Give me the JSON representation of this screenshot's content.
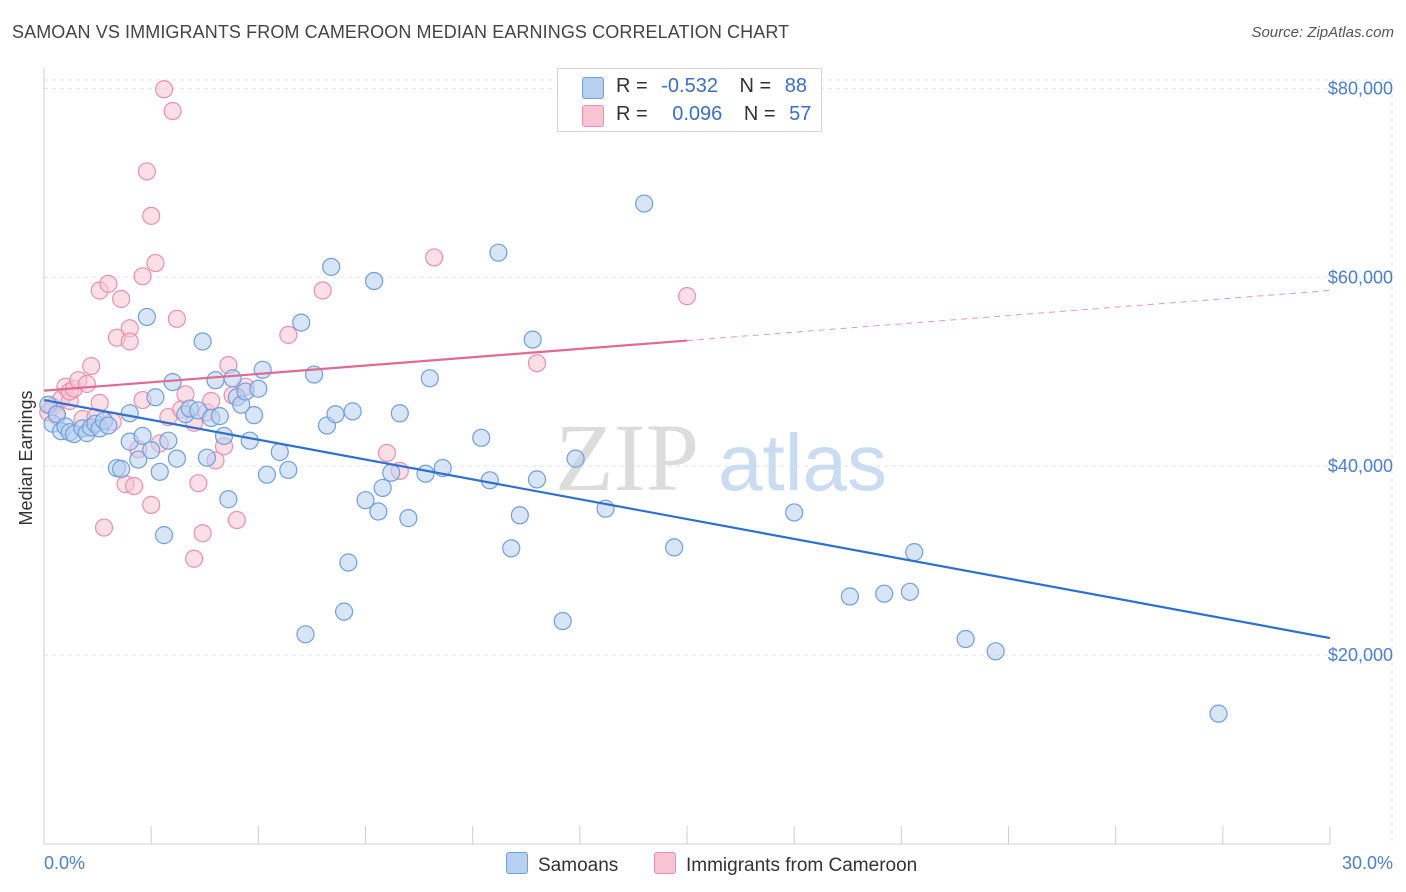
{
  "title": "SAMOAN VS IMMIGRANTS FROM CAMEROON MEDIAN EARNINGS CORRELATION CHART",
  "source": "Source: ZipAtlas.com",
  "watermark": {
    "zip": "ZIP",
    "atlas": "atlas"
  },
  "legend": {
    "rows": [
      {
        "r_label": "R =",
        "r_value": "-0.532",
        "n_label": "N =",
        "n_value": "88"
      },
      {
        "r_label": "R =",
        "r_value": "0.096",
        "n_label": "N =",
        "n_value": "57"
      }
    ]
  },
  "colors": {
    "blue_fill": "#b8d0f0",
    "blue_stroke": "#6f9fe0",
    "blue_line": "#2f6fd0",
    "pink_fill": "#f8c4d4",
    "pink_stroke": "#ec8fae",
    "pink_line": "#e06a94",
    "tick_text": "#4a7fd0"
  },
  "chart_data": {
    "type": "scatter",
    "title": "SAMOAN VS IMMIGRANTS FROM CAMEROON MEDIAN EARNINGS CORRELATION CHART",
    "xlabel": "",
    "ylabel": "Median Earnings",
    "xlim": [
      0,
      30
    ],
    "ylim": [
      0,
      83000
    ],
    "x_tick_labels": [
      "0.0%",
      "30.0%"
    ],
    "y_ticks": [
      20000,
      40000,
      60000,
      80000
    ],
    "y_tick_labels": [
      "$20,000",
      "$40,000",
      "$60,000",
      "$80,000"
    ],
    "grid": true,
    "legend_position": "top-center",
    "series": [
      {
        "name": "Samoans",
        "r": -0.532,
        "n": 88,
        "trend": {
          "x0": 0,
          "y0": 47000,
          "x1": 30,
          "y1": 21800,
          "solid_until": 30
        },
        "points": [
          [
            0.1,
            46500
          ],
          [
            0.2,
            44500
          ],
          [
            0.3,
            45500
          ],
          [
            0.4,
            43700
          ],
          [
            0.5,
            44200
          ],
          [
            0.6,
            43600
          ],
          [
            0.7,
            43400
          ],
          [
            0.9,
            44000
          ],
          [
            1.0,
            43500
          ],
          [
            1.1,
            44100
          ],
          [
            1.2,
            44500
          ],
          [
            1.3,
            44000
          ],
          [
            1.4,
            44800
          ],
          [
            1.5,
            44300
          ],
          [
            1.7,
            39800
          ],
          [
            1.8,
            39700
          ],
          [
            2.0,
            42600
          ],
          [
            2.0,
            45600
          ],
          [
            2.2,
            40700
          ],
          [
            2.3,
            43200
          ],
          [
            2.4,
            55800
          ],
          [
            2.5,
            41700
          ],
          [
            2.6,
            47300
          ],
          [
            2.7,
            39400
          ],
          [
            2.8,
            32700
          ],
          [
            2.9,
            42700
          ],
          [
            3.0,
            48900
          ],
          [
            3.1,
            40800
          ],
          [
            3.3,
            45500
          ],
          [
            3.4,
            46100
          ],
          [
            3.6,
            45900
          ],
          [
            3.7,
            53200
          ],
          [
            3.8,
            40900
          ],
          [
            3.9,
            45100
          ],
          [
            4.0,
            49100
          ],
          [
            4.1,
            45300
          ],
          [
            4.2,
            43200
          ],
          [
            4.3,
            36500
          ],
          [
            4.4,
            49300
          ],
          [
            4.5,
            47300
          ],
          [
            4.6,
            46500
          ],
          [
            4.7,
            47900
          ],
          [
            4.8,
            42700
          ],
          [
            4.9,
            45400
          ],
          [
            5.0,
            48200
          ],
          [
            5.1,
            50200
          ],
          [
            5.2,
            39100
          ],
          [
            5.5,
            41500
          ],
          [
            5.7,
            39600
          ],
          [
            6.0,
            55200
          ],
          [
            6.1,
            22200
          ],
          [
            6.3,
            49700
          ],
          [
            6.6,
            44300
          ],
          [
            6.7,
            61100
          ],
          [
            6.8,
            45500
          ],
          [
            7.0,
            24600
          ],
          [
            7.1,
            29800
          ],
          [
            7.2,
            45800
          ],
          [
            7.5,
            36400
          ],
          [
            7.7,
            59600
          ],
          [
            7.8,
            35200
          ],
          [
            7.9,
            37700
          ],
          [
            8.1,
            39300
          ],
          [
            8.3,
            45600
          ],
          [
            8.5,
            34500
          ],
          [
            8.9,
            39200
          ],
          [
            9.0,
            49300
          ],
          [
            9.3,
            39800
          ],
          [
            10.2,
            43000
          ],
          [
            10.4,
            38500
          ],
          [
            10.6,
            62600
          ],
          [
            10.9,
            31300
          ],
          [
            11.1,
            34800
          ],
          [
            11.4,
            53400
          ],
          [
            11.5,
            38600
          ],
          [
            12.1,
            23600
          ],
          [
            12.4,
            40800
          ],
          [
            13.1,
            35500
          ],
          [
            14.0,
            67800
          ],
          [
            14.7,
            31400
          ],
          [
            17.5,
            35100
          ],
          [
            18.8,
            26200
          ],
          [
            19.6,
            26500
          ],
          [
            20.3,
            30900
          ],
          [
            20.2,
            26700
          ],
          [
            21.5,
            21700
          ],
          [
            22.2,
            20400
          ],
          [
            27.4,
            13800
          ]
        ]
      },
      {
        "name": "Immigrants from Cameroon",
        "r": 0.096,
        "n": 57,
        "trend": {
          "x0": 0,
          "y0": 48000,
          "x1": 30,
          "y1": 58600,
          "solid_until": 15
        },
        "points": [
          [
            0.1,
            45700
          ],
          [
            0.2,
            46300
          ],
          [
            0.3,
            45300
          ],
          [
            0.4,
            47100
          ],
          [
            0.5,
            48400
          ],
          [
            0.6,
            46900
          ],
          [
            0.6,
            47900
          ],
          [
            0.7,
            48200
          ],
          [
            0.8,
            49100
          ],
          [
            0.9,
            45000
          ],
          [
            1.0,
            48700
          ],
          [
            1.1,
            50600
          ],
          [
            1.2,
            45200
          ],
          [
            1.3,
            46700
          ],
          [
            1.3,
            58600
          ],
          [
            1.4,
            33500
          ],
          [
            1.5,
            59300
          ],
          [
            1.6,
            44700
          ],
          [
            1.7,
            53600
          ],
          [
            1.8,
            57700
          ],
          [
            1.9,
            38100
          ],
          [
            2.0,
            54600
          ],
          [
            2.0,
            53200
          ],
          [
            2.1,
            37900
          ],
          [
            2.2,
            41800
          ],
          [
            2.3,
            60100
          ],
          [
            2.4,
            71200
          ],
          [
            2.5,
            35900
          ],
          [
            2.5,
            66500
          ],
          [
            2.6,
            61500
          ],
          [
            2.7,
            42400
          ],
          [
            2.8,
            79900
          ],
          [
            2.9,
            45200
          ],
          [
            3.0,
            77600
          ],
          [
            3.1,
            55600
          ],
          [
            3.2,
            46000
          ],
          [
            3.3,
            47600
          ],
          [
            3.5,
            30200
          ],
          [
            3.6,
            38200
          ],
          [
            3.7,
            32900
          ],
          [
            3.8,
            45700
          ],
          [
            3.9,
            46900
          ],
          [
            4.0,
            40600
          ],
          [
            4.2,
            42100
          ],
          [
            4.3,
            50700
          ],
          [
            4.4,
            47500
          ],
          [
            4.5,
            34300
          ],
          [
            4.7,
            48400
          ],
          [
            5.7,
            53900
          ],
          [
            6.5,
            58600
          ],
          [
            8.0,
            41400
          ],
          [
            8.3,
            39500
          ],
          [
            9.1,
            62100
          ],
          [
            11.5,
            50900
          ],
          [
            15.0,
            58000
          ],
          [
            2.3,
            47000
          ],
          [
            3.5,
            44600
          ]
        ]
      }
    ]
  },
  "bottom_legend": [
    {
      "label": "Samoans"
    },
    {
      "label": "Immigrants from Cameroon"
    }
  ]
}
